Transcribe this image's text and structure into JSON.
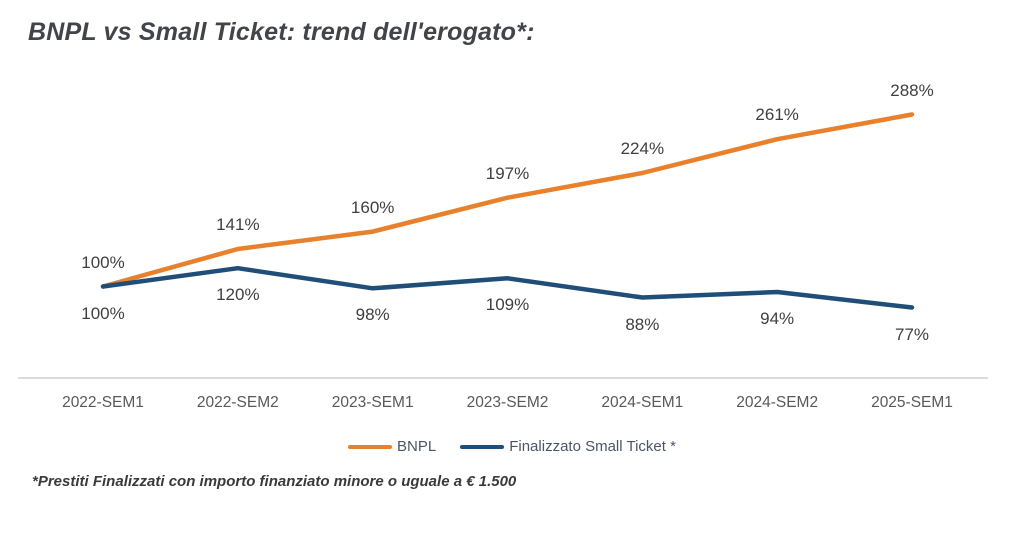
{
  "title": "BNPL vs Small Ticket: trend dell'erogato*:",
  "footnote": "*Prestiti Finalizzati con importo finanziato minore o uguale a  € 1.500",
  "chart_data": {
    "type": "line",
    "categories": [
      "2022-SEM1",
      "2022-SEM2",
      "2023-SEM1",
      "2023-SEM2",
      "2024-SEM1",
      "2024-SEM2",
      "2025-SEM1"
    ],
    "series": [
      {
        "name": "BNPL",
        "color": "#E8802C",
        "values": [
          100,
          141,
          160,
          197,
          224,
          261,
          288
        ],
        "label_suffix": "%"
      },
      {
        "name": "Finalizzato Small Ticket *",
        "color": "#1F4E79",
        "values": [
          100,
          120,
          98,
          109,
          88,
          94,
          77
        ],
        "label_suffix": "%"
      }
    ],
    "title": "BNPL vs Small Ticket: trend dell'erogato*:",
    "xlabel": "",
    "ylabel": "",
    "ylim": [
      0,
      340
    ],
    "grid": false,
    "legend_position": "bottom",
    "data_labels": true,
    "axis_color": "#DCDCDC",
    "label_color": "#3F3F3F",
    "tick_color": "#595959"
  }
}
